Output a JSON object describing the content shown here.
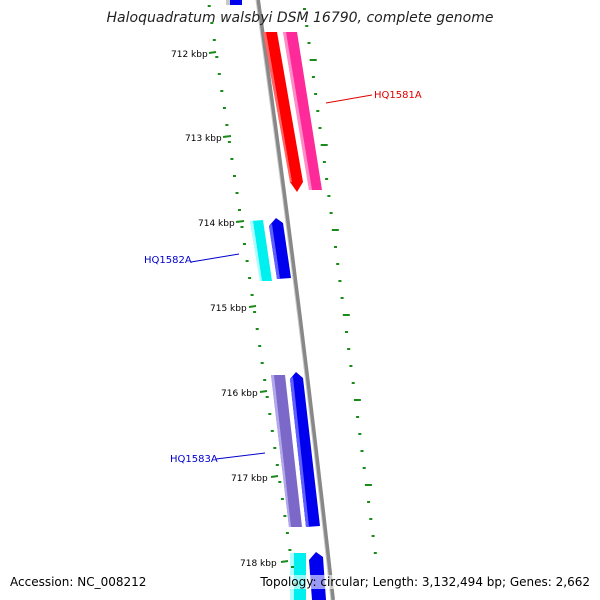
{
  "title": "Haloquadratum walsbyi DSM 16790, complete genome",
  "footer": {
    "accession": "Accession: NC_008212",
    "topology": "Topology: circular; Length: 3,132,494 bp; Genes: 2,662"
  },
  "ticks": [
    {
      "label": "712 kbp"
    },
    {
      "label": "713 kbp"
    },
    {
      "label": "714 kbp"
    },
    {
      "label": "715 kbp"
    },
    {
      "label": "716 kbp"
    },
    {
      "label": "717 kbp"
    },
    {
      "label": "718 kbp"
    }
  ],
  "gene_labels": [
    {
      "name": "HQ1581A",
      "color": "#e00000"
    },
    {
      "name": "HQ1582A",
      "color": "#0000cc"
    },
    {
      "name": "HQ1583A",
      "color": "#0000cc"
    }
  ],
  "colors": {
    "backbone": "#8c8c8c",
    "tick": "#1a8a1a",
    "red": "#ff0000",
    "pink": "#ff2a9a",
    "blue": "#0000ee",
    "cyan": "#00f0f0",
    "purple": "#7b68c8"
  }
}
